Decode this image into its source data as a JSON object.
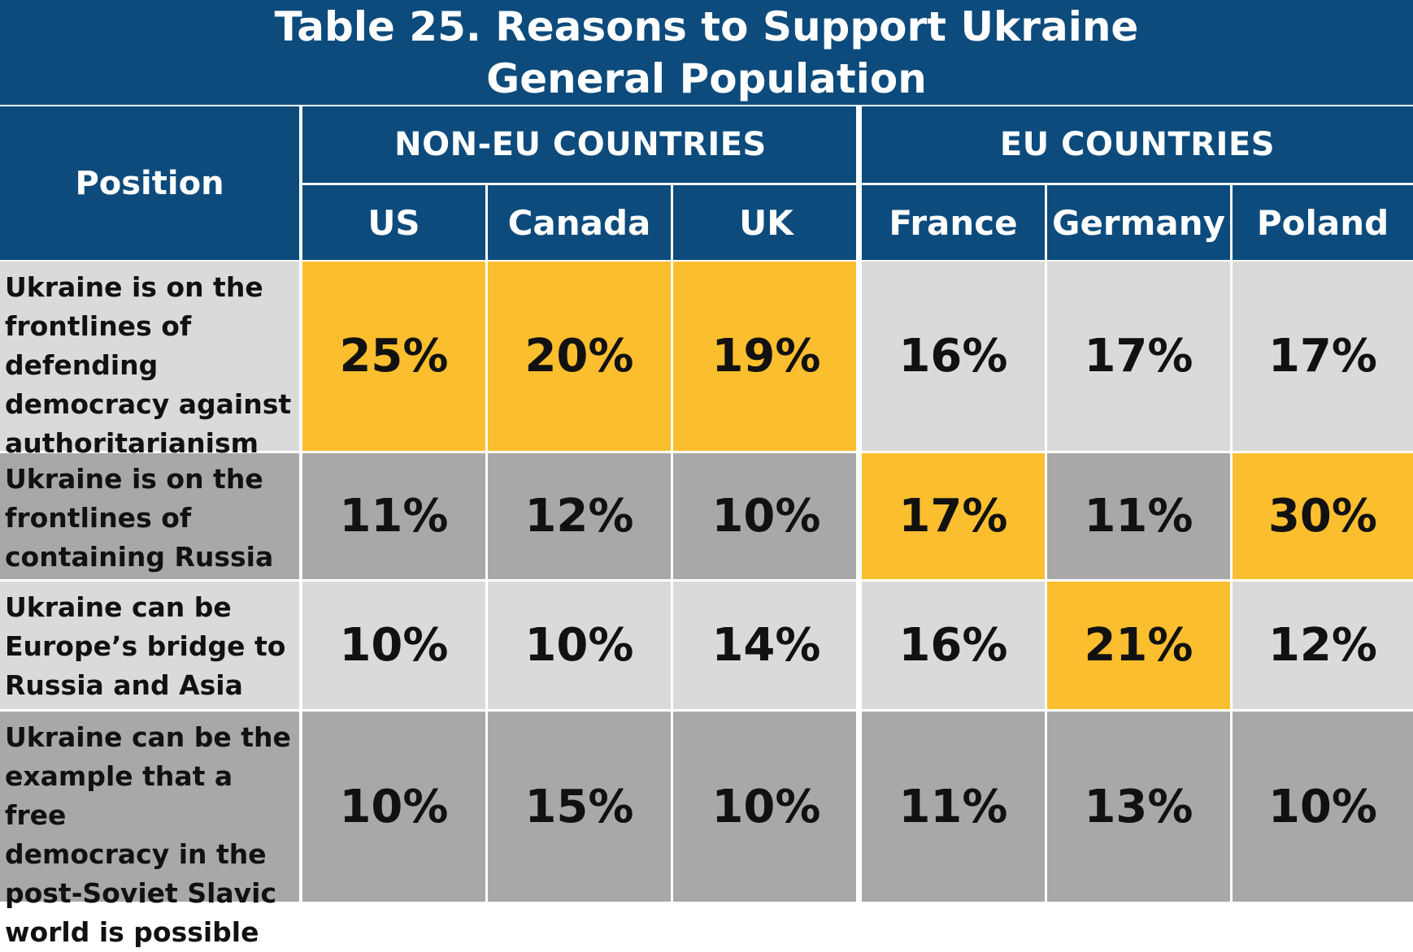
{
  "title": {
    "line1": "Table 25. Reasons to Support Ukraine",
    "line2": "General Population"
  },
  "colors": {
    "header_bg": "#0d4b7c",
    "highlight": "#fbbe2e",
    "row_light": "#dadada",
    "row_dark": "#a8a8a8"
  },
  "chart_data": {
    "type": "table",
    "title": "Table 25. Reasons to Support Ukraine — General Population",
    "row_header": "Position",
    "groups": [
      {
        "name": "NON-EU COUNTRIES",
        "countries": [
          "US",
          "Canada",
          "UK"
        ]
      },
      {
        "name": "EU COUNTRIES",
        "countries": [
          "France",
          "Germany",
          "Poland"
        ]
      }
    ],
    "columns": [
      "US",
      "Canada",
      "UK",
      "France",
      "Germany",
      "Poland"
    ],
    "rows": [
      {
        "label": "Ukraine is on the frontlines of defending democracy against authoritarianism",
        "label_lines": [
          "Ukraine is on the",
          "frontlines of",
          "defending",
          "democracy against",
          "authoritarianism"
        ],
        "values": [
          "25%",
          "20%",
          "19%",
          "16%",
          "17%",
          "17%"
        ],
        "highlighted": [
          true,
          true,
          true,
          false,
          false,
          false
        ]
      },
      {
        "label": "Ukraine is on the frontlines of containing Russia",
        "label_lines": [
          "Ukraine is on the",
          "frontlines of",
          "containing Russia"
        ],
        "values": [
          "11%",
          "12%",
          "10%",
          "17%",
          "11%",
          "30%"
        ],
        "highlighted": [
          false,
          false,
          false,
          true,
          false,
          true
        ]
      },
      {
        "label": "Ukraine can be Europe’s bridge to Russia and Asia",
        "label_lines": [
          "Ukraine can be",
          "Europe’s bridge to",
          "Russia and Asia"
        ],
        "values": [
          "10%",
          "10%",
          "14%",
          "16%",
          "21%",
          "12%"
        ],
        "highlighted": [
          false,
          false,
          false,
          false,
          true,
          false
        ]
      },
      {
        "label": "Ukraine can be the example that a free democracy in the post-Soviet Slavic world is possible",
        "label_lines": [
          "Ukraine can be the",
          "example that a free",
          "democracy in the",
          "post-Soviet Slavic",
          "world is possible"
        ],
        "values": [
          "10%",
          "15%",
          "10%",
          "11%",
          "13%",
          "10%"
        ],
        "highlighted": [
          false,
          false,
          false,
          false,
          false,
          false
        ]
      }
    ]
  }
}
